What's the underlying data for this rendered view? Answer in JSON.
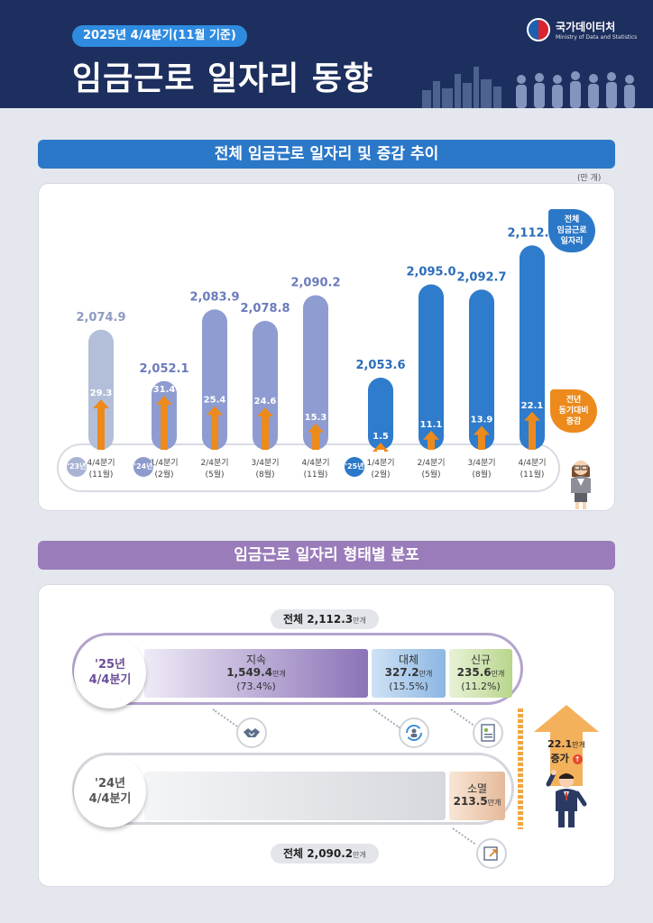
{
  "header": {
    "period": "2025년 4/4분기(11월 기준)",
    "title": "임금근로 일자리 동향",
    "org": "국가데이터처",
    "org_en": "Ministry of Data and Statistics"
  },
  "section1": {
    "title": "전체 임금근로 일자리 및 증감 추이",
    "unit": "(만 개)"
  },
  "section2": {
    "title": "임금근로 일자리 형태별 분포"
  },
  "callouts": {
    "total": "전체\n임금근로\n일자리",
    "change": "전년\n동기대비\n증감"
  },
  "chart_data": {
    "type": "bar",
    "categories": [
      "4/4분기 (11월)",
      "1/4분기 (2월)",
      "2/4분기 (5월)",
      "3/4분기 (8월)",
      "4/4분기 (11월)",
      "1/4분기 (2월)",
      "2/4분기 (5월)",
      "3/4분기 (8월)",
      "4/4분기 (11월)"
    ],
    "quarter_labels": [
      "4/4분기",
      "1/4분기",
      "2/4분기",
      "3/4분기",
      "4/4분기",
      "1/4분기",
      "2/4분기",
      "3/4분기",
      "4/4분기"
    ],
    "month_labels": [
      "(11월)",
      "(2월)",
      "(5월)",
      "(8월)",
      "(11월)",
      "(2월)",
      "(5월)",
      "(8월)",
      "(11월)"
    ],
    "year_groups": [
      {
        "label": "'23년",
        "start": 0,
        "end": 0,
        "color": "#a9b4d4"
      },
      {
        "label": "'24년",
        "start": 1,
        "end": 4,
        "color": "#8d9acd"
      },
      {
        "label": "'25년",
        "start": 5,
        "end": 8,
        "color": "#2c78c8"
      }
    ],
    "series": [
      {
        "values": [
          2074.9,
          2052.1,
          2083.9,
          2078.8,
          2090.2,
          2053.6,
          2095.0,
          2092.7,
          2112.3
        ]
      },
      {
        "values": [
          29.3,
          31.4,
          25.4,
          24.6,
          15.3,
          1.5,
          11.1,
          13.9,
          22.1
        ]
      }
    ],
    "value_labels": [
      "2,074.9",
      "2,052.1",
      "2,083.9",
      "2,078.8",
      "2,090.2",
      "2,053.6",
      "2,095.0",
      "2,092.7",
      "2,112.3"
    ],
    "change_labels": [
      "29.3",
      "31.4",
      "25.4",
      "24.6",
      "15.3",
      "1.5",
      "11.1",
      "13.9",
      "22.1"
    ],
    "colors": {
      "y23": "#b3bfd9",
      "y24": "#8e9cd1",
      "y25": "#2f7bcc",
      "arrow": "#ec8a1c"
    }
  },
  "distribution": {
    "total_2025": {
      "label": "전체",
      "value": "2,112.3",
      "unit": "만개"
    },
    "total_2024": {
      "label": "전체",
      "value": "2,090.2",
      "unit": "만개"
    },
    "row_2025": {
      "label": "'25년\n4/4분기"
    },
    "row_2024": {
      "label": "'24년\n4/4분기"
    },
    "segments_2025": [
      {
        "name": "지속",
        "value": "1,549.4",
        "unit": "만개",
        "share": "(73.4%)",
        "num": 1549.4
      },
      {
        "name": "대체",
        "value": "327.2",
        "unit": "만개",
        "share": "(15.5%)",
        "num": 327.2
      },
      {
        "name": "신규",
        "value": "235.6",
        "unit": "만개",
        "share": "(11.2%)",
        "num": 235.6
      }
    ],
    "extinction_2024": {
      "name": "소멸",
      "value": "213.5",
      "unit": "만개",
      "num": 213.5
    },
    "increase": {
      "value": "22.1",
      "unit": "만개",
      "label": "증가"
    },
    "icons": [
      "handshake-icon",
      "cycle-person-icon",
      "new-document-icon",
      "exit-icon"
    ]
  }
}
